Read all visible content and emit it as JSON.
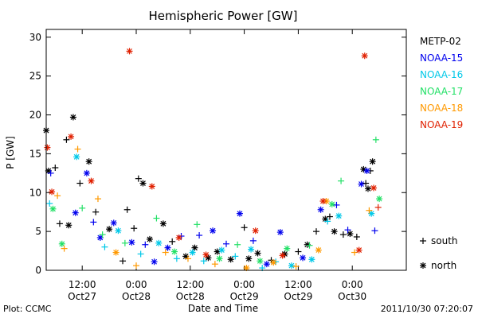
{
  "chart_data": {
    "type": "scatter",
    "title": "Hemispheric Power [GW]",
    "ylabel": "P [GW]",
    "xlabel": "Date and Time",
    "ylim": [
      0,
      31
    ],
    "xlim": [
      "2011-10-27T04:00",
      "2011-10-30T12:00"
    ],
    "yticks": [
      0,
      5,
      10,
      15,
      20,
      25,
      30
    ],
    "xticks": [
      {
        "time": "2011-10-27T12:00",
        "label1": "12:00",
        "label2": "Oct27"
      },
      {
        "time": "2011-10-28T00:00",
        "label1": "0:00",
        "label2": "Oct28"
      },
      {
        "time": "2011-10-28T12:00",
        "label1": "12:00",
        "label2": "Oct28"
      },
      {
        "time": "2011-10-29T00:00",
        "label1": "0:00",
        "label2": "Oct29"
      },
      {
        "time": "2011-10-29T12:00",
        "label1": "12:00",
        "label2": "Oct29"
      },
      {
        "time": "2011-10-30T00:00",
        "label1": "0:00",
        "label2": "Oct30"
      }
    ],
    "legend_position": "right",
    "series": [
      {
        "name": "METP-02",
        "color": "#000000",
        "points": [
          {
            "x": "2011-10-27T04:00",
            "y": 18.0,
            "m": "north"
          },
          {
            "x": "2011-10-27T04:30",
            "y": 12.8,
            "m": "north"
          },
          {
            "x": "2011-10-27T06:00",
            "y": 13.2,
            "m": "south"
          },
          {
            "x": "2011-10-27T07:00",
            "y": 6.0,
            "m": "south"
          },
          {
            "x": "2011-10-27T08:30",
            "y": 16.8,
            "m": "south"
          },
          {
            "x": "2011-10-27T09:00",
            "y": 5.8,
            "m": "north"
          },
          {
            "x": "2011-10-27T10:00",
            "y": 19.7,
            "m": "north"
          },
          {
            "x": "2011-10-27T11:30",
            "y": 11.2,
            "m": "south"
          },
          {
            "x": "2011-10-27T13:30",
            "y": 14.0,
            "m": "north"
          },
          {
            "x": "2011-10-27T15:00",
            "y": 7.5,
            "m": "south"
          },
          {
            "x": "2011-10-27T18:00",
            "y": 5.3,
            "m": "north"
          },
          {
            "x": "2011-10-27T21:00",
            "y": 1.2,
            "m": "south"
          },
          {
            "x": "2011-10-27T22:00",
            "y": 7.8,
            "m": "south"
          },
          {
            "x": "2011-10-27T23:30",
            "y": 5.4,
            "m": "south"
          },
          {
            "x": "2011-10-28T00:30",
            "y": 11.8,
            "m": "south"
          },
          {
            "x": "2011-10-28T01:30",
            "y": 11.2,
            "m": "north"
          },
          {
            "x": "2011-10-28T03:00",
            "y": 4.0,
            "m": "north"
          },
          {
            "x": "2011-10-28T06:00",
            "y": 6.0,
            "m": "north"
          },
          {
            "x": "2011-10-28T08:00",
            "y": 3.7,
            "m": "south"
          },
          {
            "x": "2011-10-28T11:00",
            "y": 1.8,
            "m": "north"
          },
          {
            "x": "2011-10-28T13:00",
            "y": 2.9,
            "m": "north"
          },
          {
            "x": "2011-10-28T16:00",
            "y": 1.6,
            "m": "north"
          },
          {
            "x": "2011-10-28T18:00",
            "y": 2.4,
            "m": "north"
          },
          {
            "x": "2011-10-28T21:00",
            "y": 1.4,
            "m": "north"
          },
          {
            "x": "2011-10-29T00:00",
            "y": 5.5,
            "m": "south"
          },
          {
            "x": "2011-10-29T01:00",
            "y": 1.5,
            "m": "north"
          },
          {
            "x": "2011-10-29T03:00",
            "y": 2.2,
            "m": "north"
          },
          {
            "x": "2011-10-29T06:00",
            "y": 1.3,
            "m": "south"
          },
          {
            "x": "2011-10-29T09:00",
            "y": 2.1,
            "m": "north"
          },
          {
            "x": "2011-10-29T12:00",
            "y": 2.4,
            "m": "south"
          },
          {
            "x": "2011-10-29T14:00",
            "y": 3.3,
            "m": "north"
          },
          {
            "x": "2011-10-29T16:00",
            "y": 5.0,
            "m": "south"
          },
          {
            "x": "2011-10-29T18:00",
            "y": 6.6,
            "m": "north"
          },
          {
            "x": "2011-10-29T19:00",
            "y": 6.9,
            "m": "south"
          },
          {
            "x": "2011-10-29T20:00",
            "y": 5.0,
            "m": "north"
          },
          {
            "x": "2011-10-29T22:00",
            "y": 4.6,
            "m": "south"
          },
          {
            "x": "2011-10-29T23:30",
            "y": 4.7,
            "m": "north"
          },
          {
            "x": "2011-10-30T01:00",
            "y": 4.3,
            "m": "south"
          },
          {
            "x": "2011-10-30T02:30",
            "y": 13.0,
            "m": "north"
          },
          {
            "x": "2011-10-30T03:00",
            "y": 11.2,
            "m": "south"
          },
          {
            "x": "2011-10-30T03:30",
            "y": 10.5,
            "m": "north"
          },
          {
            "x": "2011-10-30T04:00",
            "y": 12.8,
            "m": "south"
          },
          {
            "x": "2011-10-30T04:30",
            "y": 14.0,
            "m": "north"
          }
        ]
      },
      {
        "name": "NOAA-15",
        "color": "#0000ee",
        "points": [
          {
            "x": "2011-10-27T05:00",
            "y": 12.5,
            "m": "south"
          },
          {
            "x": "2011-10-27T10:30",
            "y": 7.4,
            "m": "north"
          },
          {
            "x": "2011-10-27T13:00",
            "y": 12.5,
            "m": "north"
          },
          {
            "x": "2011-10-27T14:30",
            "y": 6.2,
            "m": "south"
          },
          {
            "x": "2011-10-27T16:00",
            "y": 4.2,
            "m": "north"
          },
          {
            "x": "2011-10-27T19:00",
            "y": 6.1,
            "m": "north"
          },
          {
            "x": "2011-10-27T23:00",
            "y": 3.6,
            "m": "north"
          },
          {
            "x": "2011-10-28T02:00",
            "y": 3.3,
            "m": "south"
          },
          {
            "x": "2011-10-28T04:00",
            "y": 1.1,
            "m": "north"
          },
          {
            "x": "2011-10-28T07:00",
            "y": 2.9,
            "m": "north"
          },
          {
            "x": "2011-10-28T10:00",
            "y": 4.4,
            "m": "south"
          },
          {
            "x": "2011-10-28T14:00",
            "y": 4.5,
            "m": "south"
          },
          {
            "x": "2011-10-28T17:00",
            "y": 5.1,
            "m": "north"
          },
          {
            "x": "2011-10-28T20:00",
            "y": 3.4,
            "m": "south"
          },
          {
            "x": "2011-10-28T23:00",
            "y": 7.3,
            "m": "north"
          },
          {
            "x": "2011-10-29T02:00",
            "y": 3.8,
            "m": "south"
          },
          {
            "x": "2011-10-29T05:00",
            "y": 0.8,
            "m": "north"
          },
          {
            "x": "2011-10-29T08:00",
            "y": 4.9,
            "m": "north"
          },
          {
            "x": "2011-10-29T13:00",
            "y": 1.6,
            "m": "north"
          },
          {
            "x": "2011-10-29T17:00",
            "y": 7.8,
            "m": "north"
          },
          {
            "x": "2011-10-29T20:30",
            "y": 8.4,
            "m": "south"
          },
          {
            "x": "2011-10-29T23:00",
            "y": 5.2,
            "m": "south"
          },
          {
            "x": "2011-10-30T02:00",
            "y": 11.1,
            "m": "north"
          },
          {
            "x": "2011-10-30T03:15",
            "y": 12.8,
            "m": "north"
          },
          {
            "x": "2011-10-30T05:00",
            "y": 5.1,
            "m": "south"
          }
        ]
      },
      {
        "name": "NOAA-16",
        "color": "#00c8e8",
        "points": [
          {
            "x": "2011-10-27T04:45",
            "y": 8.6,
            "m": "south"
          },
          {
            "x": "2011-10-27T10:45",
            "y": 14.6,
            "m": "north"
          },
          {
            "x": "2011-10-27T17:00",
            "y": 3.0,
            "m": "south"
          },
          {
            "x": "2011-10-27T20:00",
            "y": 5.1,
            "m": "north"
          },
          {
            "x": "2011-10-28T01:00",
            "y": 2.1,
            "m": "south"
          },
          {
            "x": "2011-10-28T05:00",
            "y": 3.5,
            "m": "north"
          },
          {
            "x": "2011-10-28T09:00",
            "y": 1.5,
            "m": "south"
          },
          {
            "x": "2011-10-28T12:30",
            "y": 2.3,
            "m": "north"
          },
          {
            "x": "2011-10-28T15:00",
            "y": 1.2,
            "m": "south"
          },
          {
            "x": "2011-10-28T19:00",
            "y": 2.6,
            "m": "north"
          },
          {
            "x": "2011-10-28T22:00",
            "y": 1.8,
            "m": "south"
          },
          {
            "x": "2011-10-29T01:30",
            "y": 2.7,
            "m": "north"
          },
          {
            "x": "2011-10-29T04:00",
            "y": 0.3,
            "m": "south"
          },
          {
            "x": "2011-10-29T07:00",
            "y": 1.1,
            "m": "south"
          },
          {
            "x": "2011-10-29T10:30",
            "y": 0.6,
            "m": "north"
          },
          {
            "x": "2011-10-29T15:00",
            "y": 1.4,
            "m": "north"
          },
          {
            "x": "2011-10-29T18:30",
            "y": 6.3,
            "m": "south"
          },
          {
            "x": "2011-10-29T21:00",
            "y": 7.0,
            "m": "north"
          },
          {
            "x": "2011-10-30T04:15",
            "y": 7.3,
            "m": "north"
          }
        ]
      },
      {
        "name": "NOAA-17",
        "color": "#22e066",
        "points": [
          {
            "x": "2011-10-27T05:30",
            "y": 7.9,
            "m": "north"
          },
          {
            "x": "2011-10-27T07:30",
            "y": 3.4,
            "m": "north"
          },
          {
            "x": "2011-10-27T12:00",
            "y": 8.0,
            "m": "south"
          },
          {
            "x": "2011-10-27T16:30",
            "y": 4.6,
            "m": "south"
          },
          {
            "x": "2011-10-27T21:30",
            "y": 3.5,
            "m": "south"
          },
          {
            "x": "2011-10-28T04:30",
            "y": 6.7,
            "m": "south"
          },
          {
            "x": "2011-10-28T08:30",
            "y": 2.4,
            "m": "north"
          },
          {
            "x": "2011-10-28T13:30",
            "y": 5.9,
            "m": "south"
          },
          {
            "x": "2011-10-28T18:30",
            "y": 1.5,
            "m": "north"
          },
          {
            "x": "2011-10-28T22:30",
            "y": 3.3,
            "m": "south"
          },
          {
            "x": "2011-10-29T03:30",
            "y": 1.2,
            "m": "north"
          },
          {
            "x": "2011-10-29T09:30",
            "y": 2.8,
            "m": "north"
          },
          {
            "x": "2011-10-29T14:30",
            "y": 3.2,
            "m": "south"
          },
          {
            "x": "2011-10-29T19:30",
            "y": 8.5,
            "m": "north"
          },
          {
            "x": "2011-10-29T21:30",
            "y": 11.5,
            "m": "south"
          },
          {
            "x": "2011-10-30T05:15",
            "y": 16.8,
            "m": "south"
          },
          {
            "x": "2011-10-30T06:00",
            "y": 9.2,
            "m": "north"
          }
        ]
      },
      {
        "name": "NOAA-18",
        "color": "#ff9900",
        "points": [
          {
            "x": "2011-10-27T06:30",
            "y": 9.6,
            "m": "south"
          },
          {
            "x": "2011-10-27T08:00",
            "y": 2.8,
            "m": "south"
          },
          {
            "x": "2011-10-27T11:00",
            "y": 15.6,
            "m": "south"
          },
          {
            "x": "2011-10-27T15:30",
            "y": 9.2,
            "m": "south"
          },
          {
            "x": "2011-10-27T19:30",
            "y": 2.3,
            "m": "north"
          },
          {
            "x": "2011-10-28T00:00",
            "y": 0.6,
            "m": "south"
          },
          {
            "x": "2011-10-28T06:30",
            "y": 2.3,
            "m": "south"
          },
          {
            "x": "2011-10-28T11:30",
            "y": 1.5,
            "m": "south"
          },
          {
            "x": "2011-10-28T17:30",
            "y": 0.8,
            "m": "south"
          },
          {
            "x": "2011-10-29T00:30",
            "y": 0.3,
            "m": "north"
          },
          {
            "x": "2011-10-29T06:30",
            "y": 1.0,
            "m": "north"
          },
          {
            "x": "2011-10-29T11:30",
            "y": 0.5,
            "m": "south"
          },
          {
            "x": "2011-10-29T16:30",
            "y": 2.6,
            "m": "north"
          },
          {
            "x": "2011-10-29T18:15",
            "y": 8.9,
            "m": "north"
          },
          {
            "x": "2011-10-30T00:30",
            "y": 2.3,
            "m": "south"
          },
          {
            "x": "2011-10-30T03:45",
            "y": 7.7,
            "m": "south"
          }
        ]
      },
      {
        "name": "NOAA-19",
        "color": "#e02000",
        "points": [
          {
            "x": "2011-10-27T04:15",
            "y": 15.8,
            "m": "north"
          },
          {
            "x": "2011-10-27T05:15",
            "y": 10.1,
            "m": "north"
          },
          {
            "x": "2011-10-27T09:30",
            "y": 17.2,
            "m": "north"
          },
          {
            "x": "2011-10-27T14:00",
            "y": 11.5,
            "m": "north"
          },
          {
            "x": "2011-10-27T22:30",
            "y": 28.2,
            "m": "north"
          },
          {
            "x": "2011-10-28T03:30",
            "y": 10.8,
            "m": "north"
          },
          {
            "x": "2011-10-28T09:30",
            "y": 4.2,
            "m": "north"
          },
          {
            "x": "2011-10-28T15:30",
            "y": 2.0,
            "m": "north"
          },
          {
            "x": "2011-10-29T02:30",
            "y": 5.1,
            "m": "north"
          },
          {
            "x": "2011-10-29T08:30",
            "y": 1.9,
            "m": "north"
          },
          {
            "x": "2011-10-29T17:30",
            "y": 8.9,
            "m": "north"
          },
          {
            "x": "2011-10-30T01:30",
            "y": 2.6,
            "m": "north"
          },
          {
            "x": "2011-10-30T02:45",
            "y": 27.6,
            "m": "north"
          },
          {
            "x": "2011-10-30T04:45",
            "y": 10.6,
            "m": "north"
          },
          {
            "x": "2011-10-30T05:45",
            "y": 8.1,
            "m": "south"
          }
        ]
      }
    ],
    "marker_legend": [
      {
        "symbol": "+",
        "label": "south"
      },
      {
        "symbol": "*",
        "label": "north"
      }
    ]
  },
  "footer": {
    "credit": "Plot: CCMC",
    "timestamp": "2011/10/30 07:20:07"
  }
}
